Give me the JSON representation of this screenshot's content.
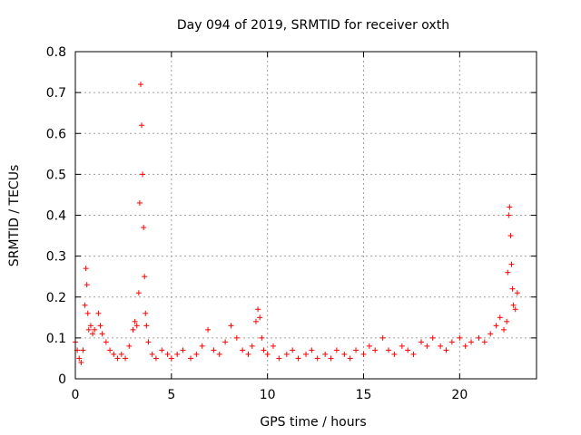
{
  "chart_data": {
    "type": "scatter",
    "title": "Day 094 of 2019, SRMTID for receiver oxth",
    "xlabel": "GPS time / hours",
    "ylabel": "SRMTID / TECUs",
    "xlim": [
      0,
      24
    ],
    "ylim": [
      0,
      0.8
    ],
    "xticks": [
      0,
      5,
      10,
      15,
      20
    ],
    "yticks": [
      0,
      0.1,
      0.2,
      0.3,
      0.4,
      0.5,
      0.6,
      0.7,
      0.8
    ],
    "grid": true,
    "marker": "+",
    "color": "#ff0000",
    "series": [
      {
        "name": "SRMTID",
        "x": [
          0.0,
          0.1,
          0.2,
          0.3,
          0.4,
          0.5,
          0.55,
          0.6,
          0.65,
          0.7,
          0.8,
          0.9,
          1.0,
          1.2,
          1.3,
          1.4,
          1.6,
          1.8,
          2.0,
          2.2,
          2.4,
          2.6,
          2.8,
          3.0,
          3.1,
          3.2,
          3.3,
          3.35,
          3.4,
          3.45,
          3.5,
          3.55,
          3.6,
          3.65,
          3.7,
          3.8,
          4.0,
          4.2,
          4.5,
          4.8,
          5.0,
          5.3,
          5.6,
          6.0,
          6.3,
          6.6,
          6.9,
          7.2,
          7.5,
          7.8,
          8.1,
          8.4,
          8.7,
          9.0,
          9.2,
          9.4,
          9.5,
          9.6,
          9.7,
          9.8,
          10.0,
          10.3,
          10.6,
          11.0,
          11.3,
          11.6,
          12.0,
          12.3,
          12.6,
          13.0,
          13.3,
          13.6,
          14.0,
          14.3,
          14.6,
          15.0,
          15.3,
          15.6,
          16.0,
          16.3,
          16.6,
          17.0,
          17.3,
          17.6,
          18.0,
          18.3,
          18.6,
          19.0,
          19.3,
          19.6,
          20.0,
          20.3,
          20.6,
          21.0,
          21.3,
          21.6,
          21.9,
          22.1,
          22.3,
          22.45,
          22.5,
          22.55,
          22.6,
          22.65,
          22.7,
          22.75,
          22.8,
          22.9,
          23.0
        ],
        "y": [
          0.09,
          0.07,
          0.05,
          0.04,
          0.07,
          0.18,
          0.27,
          0.23,
          0.16,
          0.12,
          0.13,
          0.11,
          0.12,
          0.16,
          0.13,
          0.11,
          0.09,
          0.07,
          0.06,
          0.05,
          0.06,
          0.05,
          0.08,
          0.12,
          0.14,
          0.13,
          0.21,
          0.43,
          0.72,
          0.62,
          0.5,
          0.37,
          0.25,
          0.16,
          0.13,
          0.09,
          0.06,
          0.05,
          0.07,
          0.06,
          0.05,
          0.06,
          0.07,
          0.05,
          0.06,
          0.08,
          0.12,
          0.07,
          0.06,
          0.09,
          0.13,
          0.1,
          0.07,
          0.06,
          0.08,
          0.14,
          0.17,
          0.15,
          0.1,
          0.07,
          0.06,
          0.08,
          0.05,
          0.06,
          0.07,
          0.05,
          0.06,
          0.07,
          0.05,
          0.06,
          0.05,
          0.07,
          0.06,
          0.05,
          0.07,
          0.06,
          0.08,
          0.07,
          0.1,
          0.07,
          0.06,
          0.08,
          0.07,
          0.06,
          0.09,
          0.08,
          0.1,
          0.08,
          0.07,
          0.09,
          0.1,
          0.08,
          0.09,
          0.1,
          0.09,
          0.11,
          0.13,
          0.15,
          0.12,
          0.14,
          0.26,
          0.4,
          0.42,
          0.35,
          0.28,
          0.22,
          0.18,
          0.17,
          0.21
        ]
      }
    ]
  }
}
